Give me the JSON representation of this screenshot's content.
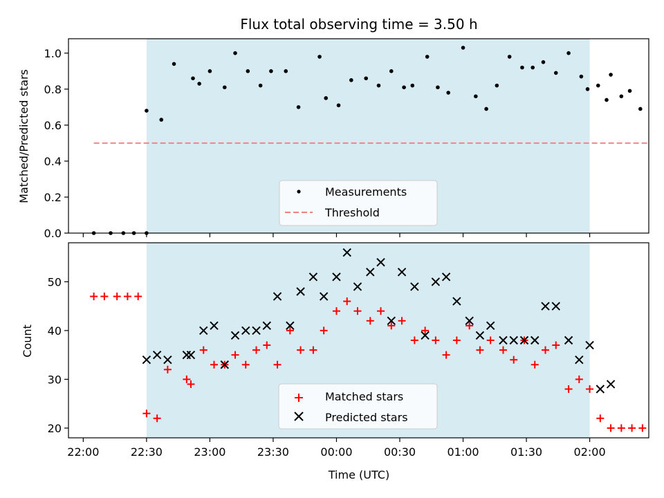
{
  "chart_data": [
    {
      "type": "scatter",
      "title": "Flux total observing time = 3.50 h",
      "xlabel": "",
      "ylabel": "Matched/Predicted stars",
      "ylim": [
        0.0,
        1.08
      ],
      "yticks": [
        0.0,
        0.2,
        0.4,
        0.6,
        0.8,
        1.0
      ],
      "ytick_labels": [
        "0.0",
        "0.2",
        "0.4",
        "0.6",
        "0.8",
        "1.0"
      ],
      "xlim": [
        "21:53",
        "02:28"
      ],
      "x_axis_unit": "time (UTC, HH:MM)",
      "shaded_region": {
        "from": "22:30",
        "to": "02:00",
        "color": "#add8e6"
      },
      "legend": {
        "placement": "lower-center"
      },
      "series": [
        {
          "name": "Measurements",
          "kind": "points",
          "color": "#000000",
          "points": [
            [
              "22:05",
              0.0
            ],
            [
              "22:13",
              0.0
            ],
            [
              "22:19",
              0.0
            ],
            [
              "22:24",
              0.0
            ],
            [
              "22:30",
              0.0
            ],
            [
              "22:30",
              0.68
            ],
            [
              "22:37",
              0.63
            ],
            [
              "22:43",
              0.94
            ],
            [
              "22:52",
              0.86
            ],
            [
              "22:55",
              0.83
            ],
            [
              "23:00",
              0.9
            ],
            [
              "23:07",
              0.81
            ],
            [
              "23:12",
              1.0
            ],
            [
              "23:18",
              0.9
            ],
            [
              "23:24",
              0.82
            ],
            [
              "23:29",
              0.9
            ],
            [
              "23:36",
              0.9
            ],
            [
              "23:42",
              0.7
            ],
            [
              "23:52",
              0.98
            ],
            [
              "23:55",
              0.75
            ],
            [
              "00:01",
              0.71
            ],
            [
              "00:07",
              0.85
            ],
            [
              "00:14",
              0.86
            ],
            [
              "00:20",
              0.82
            ],
            [
              "00:26",
              0.9
            ],
            [
              "00:32",
              0.81
            ],
            [
              "00:36",
              0.82
            ],
            [
              "00:43",
              0.98
            ],
            [
              "00:48",
              0.81
            ],
            [
              "00:53",
              0.78
            ],
            [
              "01:00",
              1.03
            ],
            [
              "01:06",
              0.76
            ],
            [
              "01:11",
              0.69
            ],
            [
              "01:16",
              0.82
            ],
            [
              "01:22",
              0.98
            ],
            [
              "01:28",
              0.92
            ],
            [
              "01:33",
              0.92
            ],
            [
              "01:38",
              0.95
            ],
            [
              "01:44",
              0.89
            ],
            [
              "01:50",
              1.0
            ],
            [
              "01:56",
              0.87
            ],
            [
              "01:59",
              0.8
            ],
            [
              "02:04",
              0.82
            ],
            [
              "02:08",
              0.74
            ],
            [
              "02:10",
              0.88
            ],
            [
              "02:15",
              0.76
            ],
            [
              "02:19",
              0.79
            ],
            [
              "02:24",
              0.69
            ]
          ]
        },
        {
          "name": "Threshold",
          "kind": "dashed-line",
          "color": "#f08080",
          "points": [
            [
              "22:05",
              0.5
            ],
            [
              "02:28",
              0.5
            ]
          ]
        }
      ]
    },
    {
      "type": "scatter",
      "title": "",
      "xlabel": "Time (UTC)",
      "ylabel": "Count",
      "ylim": [
        18,
        58
      ],
      "yticks": [
        20,
        30,
        40,
        50
      ],
      "ytick_labels": [
        "20",
        "30",
        "40",
        "50"
      ],
      "xlim": [
        "21:53",
        "02:28"
      ],
      "xticks": [
        "22:00",
        "22:30",
        "23:00",
        "23:30",
        "00:00",
        "00:30",
        "01:00",
        "01:30",
        "02:00"
      ],
      "xtick_labels": [
        "22:00",
        "22:30",
        "23:00",
        "23:30",
        "00:00",
        "00:30",
        "01:00",
        "01:30",
        "02:00"
      ],
      "shaded_region": {
        "from": "22:30",
        "to": "02:00",
        "color": "#add8e6"
      },
      "legend": {
        "placement": "lower-center"
      },
      "series": [
        {
          "name": "Matched stars",
          "kind": "plus-markers",
          "color": "#ff0000",
          "points": [
            [
              "22:05",
              47
            ],
            [
              "22:10",
              47
            ],
            [
              "22:16",
              47
            ],
            [
              "22:21",
              47
            ],
            [
              "22:26",
              47
            ],
            [
              "22:30",
              23
            ],
            [
              "22:35",
              22
            ],
            [
              "22:40",
              32
            ],
            [
              "22:49",
              30
            ],
            [
              "22:51",
              29
            ],
            [
              "22:57",
              36
            ],
            [
              "23:02",
              33
            ],
            [
              "23:07",
              33
            ],
            [
              "23:12",
              35
            ],
            [
              "23:17",
              33
            ],
            [
              "23:22",
              36
            ],
            [
              "23:27",
              37
            ],
            [
              "23:32",
              33
            ],
            [
              "23:38",
              40
            ],
            [
              "23:43",
              36
            ],
            [
              "23:49",
              36
            ],
            [
              "23:54",
              40
            ],
            [
              "00:00",
              44
            ],
            [
              "00:05",
              46
            ],
            [
              "00:10",
              44
            ],
            [
              "00:16",
              42
            ],
            [
              "00:21",
              44
            ],
            [
              "00:26",
              41
            ],
            [
              "00:31",
              42
            ],
            [
              "00:37",
              38
            ],
            [
              "00:42",
              40
            ],
            [
              "00:47",
              38
            ],
            [
              "00:52",
              35
            ],
            [
              "00:57",
              38
            ],
            [
              "01:03",
              41
            ],
            [
              "01:08",
              36
            ],
            [
              "01:13",
              38
            ],
            [
              "01:19",
              36
            ],
            [
              "01:24",
              34
            ],
            [
              "01:29",
              38
            ],
            [
              "01:34",
              33
            ],
            [
              "01:39",
              36
            ],
            [
              "01:44",
              37
            ],
            [
              "01:50",
              28
            ],
            [
              "01:55",
              30
            ],
            [
              "02:00",
              28
            ],
            [
              "02:05",
              22
            ],
            [
              "02:10",
              20
            ],
            [
              "02:15",
              20
            ],
            [
              "02:20",
              20
            ],
            [
              "02:25",
              20
            ]
          ]
        },
        {
          "name": "Predicted stars",
          "kind": "x-markers",
          "color": "#000000",
          "points": [
            [
              "22:30",
              34
            ],
            [
              "22:35",
              35
            ],
            [
              "22:40",
              34
            ],
            [
              "22:49",
              35
            ],
            [
              "22:51",
              35
            ],
            [
              "22:57",
              40
            ],
            [
              "23:02",
              41
            ],
            [
              "23:07",
              33
            ],
            [
              "23:12",
              39
            ],
            [
              "23:17",
              40
            ],
            [
              "23:22",
              40
            ],
            [
              "23:27",
              41
            ],
            [
              "23:32",
              47
            ],
            [
              "23:38",
              41
            ],
            [
              "23:43",
              48
            ],
            [
              "23:49",
              51
            ],
            [
              "23:54",
              47
            ],
            [
              "00:00",
              51
            ],
            [
              "00:05",
              56
            ],
            [
              "00:10",
              49
            ],
            [
              "00:16",
              52
            ],
            [
              "00:21",
              54
            ],
            [
              "00:26",
              42
            ],
            [
              "00:31",
              52
            ],
            [
              "00:37",
              49
            ],
            [
              "00:42",
              39
            ],
            [
              "00:47",
              50
            ],
            [
              "00:52",
              51
            ],
            [
              "00:57",
              46
            ],
            [
              "01:03",
              42
            ],
            [
              "01:08",
              39
            ],
            [
              "01:13",
              41
            ],
            [
              "01:19",
              38
            ],
            [
              "01:24",
              38
            ],
            [
              "01:29",
              38
            ],
            [
              "01:34",
              38
            ],
            [
              "01:39",
              45
            ],
            [
              "01:44",
              45
            ],
            [
              "01:50",
              38
            ],
            [
              "01:55",
              34
            ],
            [
              "02:00",
              37
            ],
            [
              "02:05",
              28
            ],
            [
              "02:10",
              29
            ]
          ]
        }
      ]
    }
  ]
}
